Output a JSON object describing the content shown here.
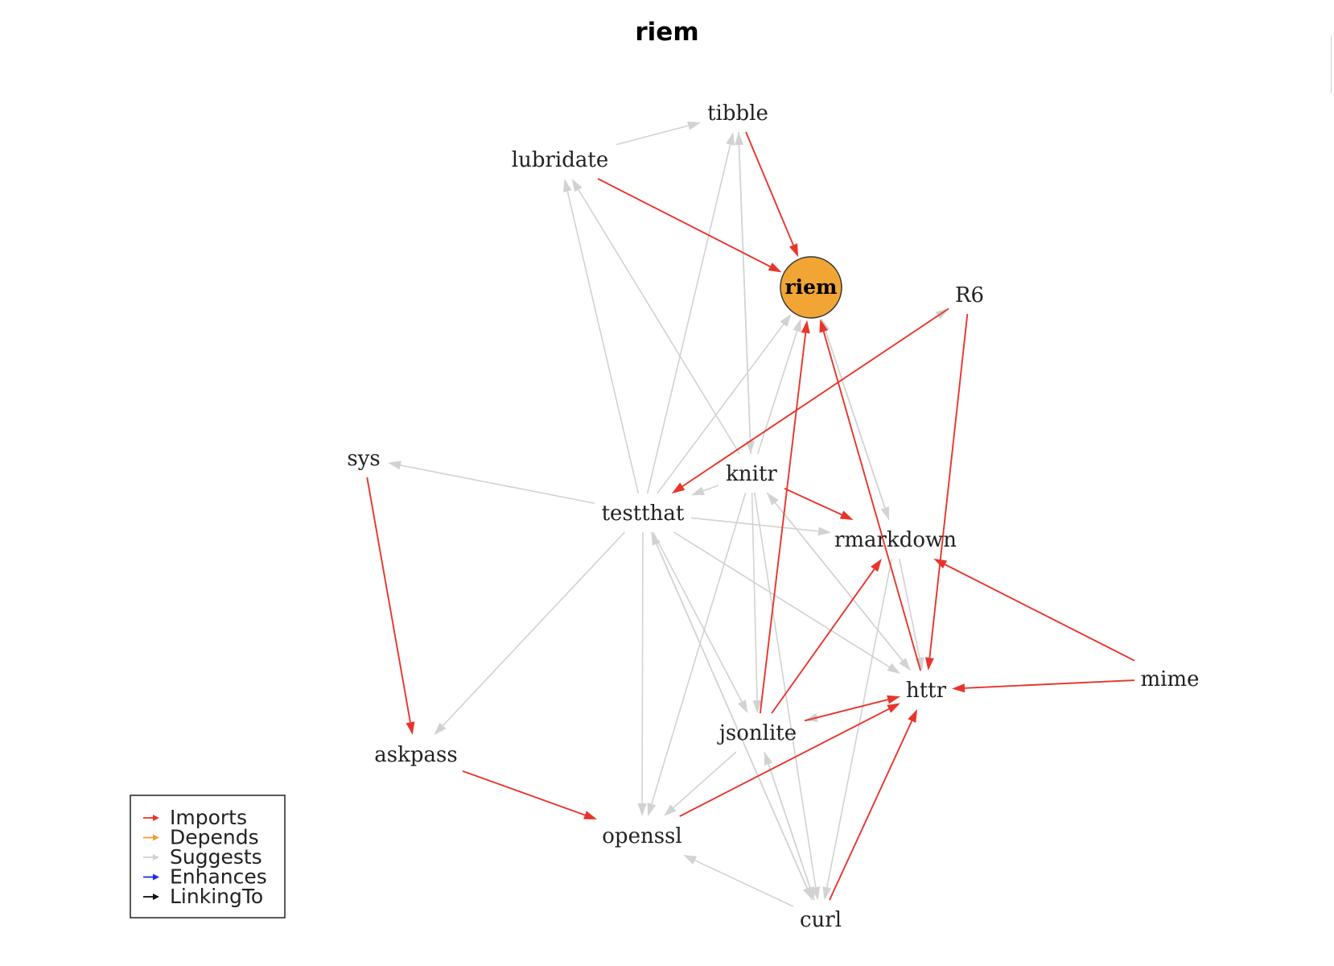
{
  "title": "riem",
  "focus_node": "riem",
  "colors": {
    "Imports": "#e8352b",
    "Depends": "#f0a030",
    "Suggests": "#d2d2d2",
    "Enhances": "#1a2ee8",
    "LinkingTo": "#111111",
    "focus_fill": "#f0a535"
  },
  "nodes": {
    "riem": "riem",
    "tibble": "tibble",
    "lubridate": "lubridate",
    "R6": "R6",
    "sys": "sys",
    "knitr": "knitr",
    "testthat": "testthat",
    "rmarkdown": "rmarkdown",
    "mime": "mime",
    "httr": "httr",
    "jsonlite": "jsonlite",
    "askpass": "askpass",
    "openssl": "openssl",
    "curl": "curl"
  },
  "edges": [
    {
      "from": "lubridate",
      "to": "riem",
      "type": "Imports"
    },
    {
      "from": "tibble",
      "to": "riem",
      "type": "Imports"
    },
    {
      "from": "jsonlite",
      "to": "riem",
      "type": "Imports"
    },
    {
      "from": "httr",
      "to": "riem",
      "type": "Imports"
    },
    {
      "from": "R6",
      "to": "httr",
      "type": "Imports"
    },
    {
      "from": "mime",
      "to": "httr",
      "type": "Imports"
    },
    {
      "from": "mime",
      "to": "rmarkdown",
      "type": "Imports"
    },
    {
      "from": "curl",
      "to": "httr",
      "type": "Imports"
    },
    {
      "from": "openssl",
      "to": "httr",
      "type": "Imports"
    },
    {
      "from": "jsonlite",
      "to": "httr",
      "type": "Imports"
    },
    {
      "from": "sys",
      "to": "askpass",
      "type": "Imports"
    },
    {
      "from": "askpass",
      "to": "openssl",
      "type": "Imports"
    },
    {
      "from": "knitr",
      "to": "rmarkdown",
      "type": "Imports"
    },
    {
      "from": "jsonlite",
      "to": "rmarkdown",
      "type": "Imports"
    },
    {
      "from": "R6",
      "to": "testthat",
      "type": "Imports"
    },
    {
      "from": "lubridate",
      "to": "tibble",
      "type": "Suggests"
    },
    {
      "from": "testthat",
      "to": "tibble",
      "type": "Suggests"
    },
    {
      "from": "knitr",
      "to": "tibble",
      "type": "Suggests"
    },
    {
      "from": "tibble",
      "to": "knitr",
      "type": "Suggests"
    },
    {
      "from": "testthat",
      "to": "lubridate",
      "type": "Suggests"
    },
    {
      "from": "knitr",
      "to": "lubridate",
      "type": "Suggests"
    },
    {
      "from": "testthat",
      "to": "riem",
      "type": "Suggests"
    },
    {
      "from": "knitr",
      "to": "riem",
      "type": "Suggests"
    },
    {
      "from": "rmarkdown",
      "to": "riem",
      "type": "Suggests"
    },
    {
      "from": "riem",
      "to": "rmarkdown",
      "type": "Suggests"
    },
    {
      "from": "testthat",
      "to": "R6",
      "type": "Suggests"
    },
    {
      "from": "testthat",
      "to": "sys",
      "type": "Suggests"
    },
    {
      "from": "knitr",
      "to": "testthat",
      "type": "Suggests"
    },
    {
      "from": "testthat",
      "to": "rmarkdown",
      "type": "Suggests"
    },
    {
      "from": "testthat",
      "to": "httr",
      "type": "Suggests"
    },
    {
      "from": "testthat",
      "to": "askpass",
      "type": "Suggests"
    },
    {
      "from": "testthat",
      "to": "openssl",
      "type": "Suggests"
    },
    {
      "from": "testthat",
      "to": "curl",
      "type": "Suggests"
    },
    {
      "from": "testthat",
      "to": "jsonlite",
      "type": "Suggests"
    },
    {
      "from": "curl",
      "to": "testthat",
      "type": "Suggests"
    },
    {
      "from": "knitr",
      "to": "httr",
      "type": "Suggests"
    },
    {
      "from": "knitr",
      "to": "openssl",
      "type": "Suggests"
    },
    {
      "from": "knitr",
      "to": "curl",
      "type": "Suggests"
    },
    {
      "from": "knitr",
      "to": "jsonlite",
      "type": "Suggests"
    },
    {
      "from": "httr",
      "to": "knitr",
      "type": "Suggests"
    },
    {
      "from": "rmarkdown",
      "to": "httr",
      "type": "Suggests"
    },
    {
      "from": "rmarkdown",
      "to": "curl",
      "type": "Suggests"
    },
    {
      "from": "httr",
      "to": "jsonlite",
      "type": "Suggests"
    },
    {
      "from": "jsonlite",
      "to": "openssl",
      "type": "Suggests"
    },
    {
      "from": "jsonlite",
      "to": "curl",
      "type": "Suggests"
    },
    {
      "from": "curl",
      "to": "jsonlite",
      "type": "Suggests"
    },
    {
      "from": "curl",
      "to": "openssl",
      "type": "Suggests"
    }
  ],
  "legend": [
    {
      "label": "Imports",
      "color": "#e8352b"
    },
    {
      "label": "Depends",
      "color": "#f0a030"
    },
    {
      "label": "Suggests",
      "color": "#d2d2d2"
    },
    {
      "label": "Enhances",
      "color": "#1a2ee8"
    },
    {
      "label": "LinkingTo",
      "color": "#111111"
    }
  ]
}
